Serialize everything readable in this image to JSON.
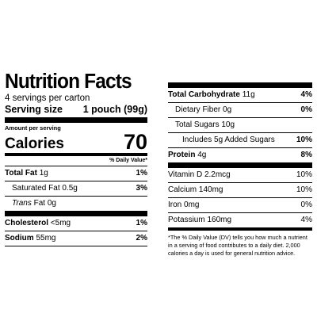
{
  "left": {
    "title": "Nutrition Facts",
    "servings": "4 servings per carton",
    "serving_size_label": "Serving size",
    "serving_size_value": "1 pouch (99g)",
    "amount_per_serving": "Amount per serving",
    "calories_label": "Calories",
    "calories_value": "70",
    "daily_value_header": "% Daily Value*",
    "nutrients": [
      {
        "name": "Total Fat",
        "amount": "1g",
        "dv": "1%"
      },
      {
        "name": "Saturated Fat",
        "amount": "0.5g",
        "dv": "3%"
      },
      {
        "name": "Trans",
        "amount": "Fat 0g",
        "dv": ""
      },
      {
        "name": "Cholesterol",
        "amount": "<5mg",
        "dv": "1%"
      },
      {
        "name": "Sodium",
        "amount": "55mg",
        "dv": "2%"
      }
    ]
  },
  "right": {
    "nutrients": [
      {
        "name": "Total Carbohydrate",
        "amount": "11g",
        "dv": "4%"
      },
      {
        "name": "Dietary Fiber",
        "amount": "0g",
        "dv": "0%"
      },
      {
        "name": "Total Sugars",
        "amount": "10g",
        "dv": ""
      },
      {
        "name": "Includes 5g Added Sugars",
        "amount": "",
        "dv": "10%"
      },
      {
        "name": "Protein",
        "amount": "4g",
        "dv": "8%"
      }
    ],
    "vitamins": [
      {
        "name": "Vitamin D",
        "amount": "2.2mcg",
        "dv": "10%"
      },
      {
        "name": "Calcium",
        "amount": "140mg",
        "dv": "10%"
      },
      {
        "name": "Iron",
        "amount": "0mg",
        "dv": "0%"
      },
      {
        "name": "Potassium",
        "amount": "160mg",
        "dv": "4%"
      }
    ],
    "footnote": "*The % Daily Value (DV) tells you how much a nutrient in a serving of food contributes to a daily diet. 2,000 calories a day is used for general nutrition advice."
  }
}
